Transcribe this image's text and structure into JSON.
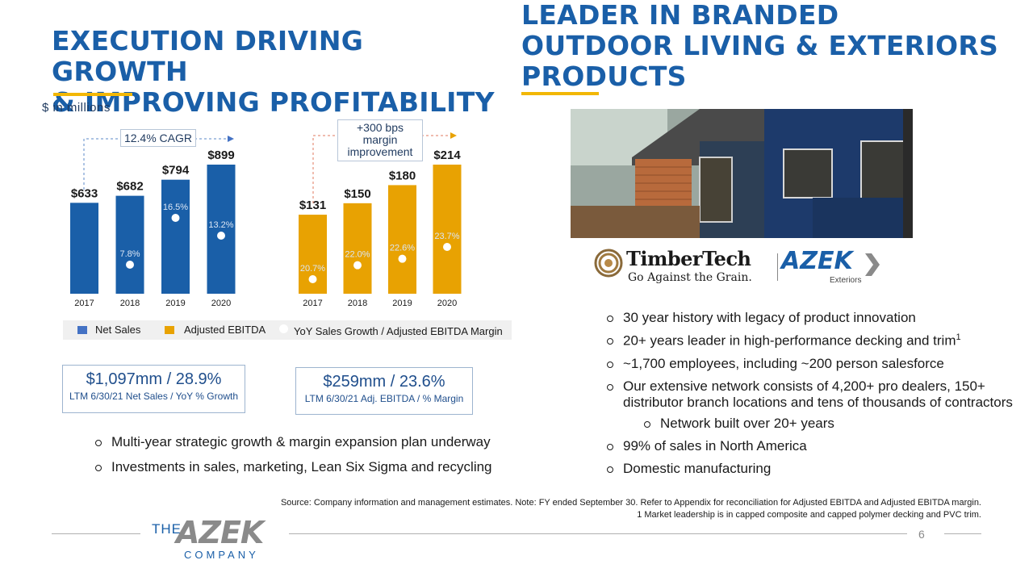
{
  "left": {
    "title_line1": "EXECUTION DRIVING GROWTH",
    "title_line2": "& IMPROVING PROFITABILITY",
    "units": "$ in millions",
    "cagr_label": "12.4% CAGR",
    "margin_label": "+300 bps margin improvement",
    "kpi1": {
      "big": "$1,097mm / 28.9%",
      "small": "LTM 6/30/21 Net Sales / YoY % Growth"
    },
    "kpi2": {
      "big": "$259mm / 23.6%",
      "small": "LTM 6/30/21 Adj. EBITDA / % Margin"
    },
    "bullets": [
      "Multi-year strategic growth & margin expansion plan underway",
      "Investments in sales, marketing, Lean Six Sigma and recycling"
    ]
  },
  "right": {
    "title_line1": "LEADER IN BRANDED",
    "title_line2": "OUTDOOR LIVING & EXTERIORS",
    "title_line3": "PRODUCTS",
    "bullets": [
      "30 year history with legacy of product innovation",
      "20+ years leader in high-performance decking and trim",
      "~1,700 employees, including ~200 person salesforce",
      "Our extensive network consists of 4,200+ pro dealers, 150+ distributor branch locations and tens of thousands of contractors"
    ],
    "sub_bullet": "Network built over 20+ years",
    "bullets2": [
      "99% of sales in North America",
      "Domestic manufacturing"
    ],
    "footnote_mark": "1",
    "logo_timbertech": "TimberTech",
    "logo_tagline": "Go Against the Grain.",
    "logo_azek": "AZEK",
    "logo_azek_sub": "Exteriors"
  },
  "footer": {
    "source": "Source: Company information and management estimates.  Note: FY ended September 30.  Refer to Appendix for reconciliation for Adjusted EBITDA and Adjusted EBITDA margin.",
    "footnote": "1  Market leadership is in capped composite and capped polymer decking and PVC trim.",
    "page_number": "6",
    "logo_the": "THE",
    "logo_azek": "AZEK",
    "logo_company": "COMPANY"
  },
  "colors": {
    "net_sales": "#1a5fa8",
    "ebitda": "#e8a202",
    "accent": "#f2b705",
    "title": "#1a5fa8"
  },
  "chart_data": [
    {
      "type": "bar",
      "categories": [
        "2017",
        "2018",
        "2019",
        "2020"
      ],
      "values": [
        633,
        682,
        794,
        899
      ],
      "value_labels": [
        "$633",
        "$682",
        "$794",
        "$899"
      ],
      "rates": [
        null,
        7.8,
        16.5,
        13.2
      ],
      "rate_labels": [
        "",
        "7.8%",
        "16.5%",
        "13.2%"
      ],
      "series_name": "Net Sales",
      "rate_name": "YoY Sales Growth / Adjusted EBITDA Margin"
    },
    {
      "type": "bar",
      "categories": [
        "2017",
        "2018",
        "2019",
        "2020"
      ],
      "values": [
        131,
        150,
        180,
        214
      ],
      "value_labels": [
        "$131",
        "$150",
        "$180",
        "$214"
      ],
      "rates": [
        20.7,
        22.0,
        22.6,
        23.7
      ],
      "rate_labels": [
        "20.7%",
        "22.0%",
        "22.6%",
        "23.7%"
      ],
      "series_name": "Adjusted EBITDA"
    }
  ],
  "legend": {
    "net_sales": "Net Sales",
    "ebitda": "Adjusted EBITDA",
    "rate": "YoY Sales Growth / Adjusted EBITDA Margin"
  }
}
